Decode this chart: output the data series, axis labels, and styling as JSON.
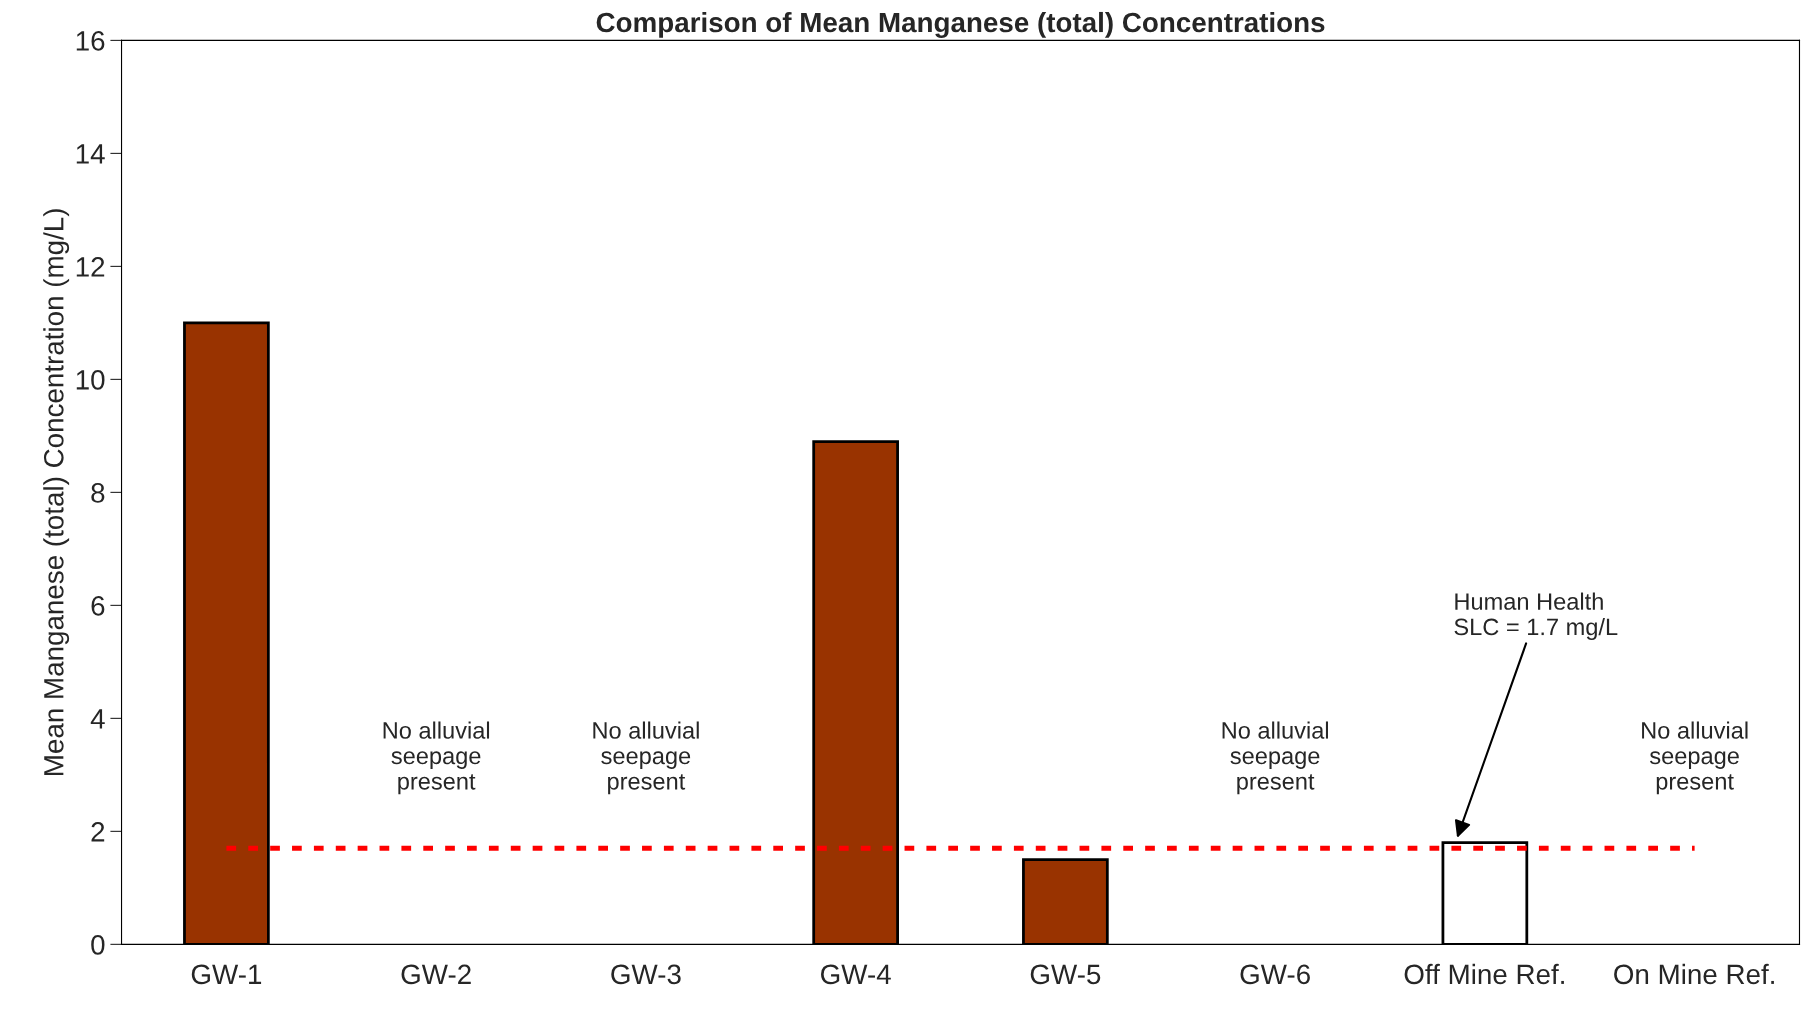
{
  "chart_data": {
    "type": "bar",
    "title": "Comparison of Mean Manganese (total) Concentrations",
    "ylabel": "Mean Manganese (total) Concentration (mg/L)",
    "categories": [
      "GW-1",
      "GW-2",
      "GW-3",
      "GW-4",
      "GW-5",
      "GW-6",
      "Off Mine Ref.",
      "On Mine Ref."
    ],
    "values": [
      11,
      null,
      null,
      8.9,
      1.5,
      null,
      1.8,
      null
    ],
    "colors": [
      "#993300",
      null,
      null,
      "#993300",
      "#993300",
      null,
      "#ffffff",
      null
    ],
    "ylim": [
      0,
      16
    ],
    "yticks": [
      0,
      2,
      4,
      6,
      8,
      10,
      12,
      14,
      16
    ],
    "grid": false,
    "legend": false,
    "ref_lines": [
      {
        "axis": "y",
        "value": 1.7,
        "color": "#ff0000",
        "line_style": "dotted"
      }
    ],
    "annotations": [
      "No alluvial\nseepage\npresent",
      "No alluvial\nseepage\npresent",
      "No alluvial\nseepage\npresent",
      "No alluvial\nseepage\npresent",
      "Human Health\nSLC = 1.7 mg/L"
    ]
  }
}
